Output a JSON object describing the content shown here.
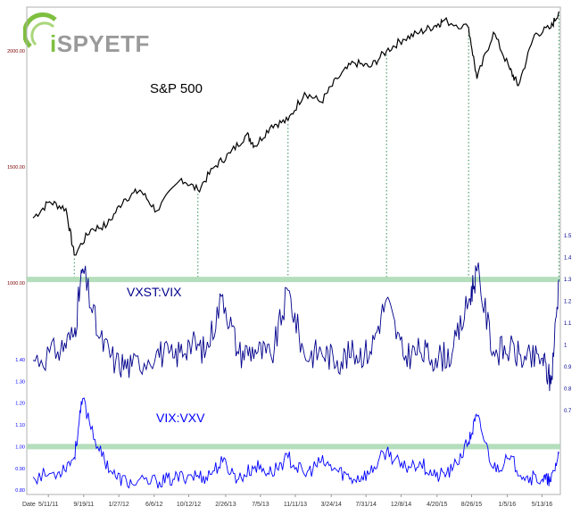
{
  "logo": {
    "prefix": "i",
    "name": "SPYETF",
    "accent": "#7fbf3f"
  },
  "chart_data": [
    {
      "type": "line",
      "title": "S&P 500",
      "xlabel": "Date",
      "x_ticks": [
        "5/11/11",
        "9/19/11",
        "1/27/12",
        "6/6/12",
        "10/12/12",
        "2/26/13",
        "7/5/13",
        "11/11/13",
        "3/24/14",
        "7/31/14",
        "12/8/14",
        "4/20/15",
        "8/26/15",
        "1/5/16",
        "5/13/16"
      ],
      "y_ticks": [
        "1000.00",
        "1500.00",
        "2000.00"
      ],
      "ylim": [
        950,
        2150
      ],
      "color": "#000000",
      "series": [
        {
          "x": [
            "3/2011",
            "5/2011",
            "7/2011",
            "8/2011",
            "10/2011",
            "12/2011",
            "2/2012",
            "4/2012",
            "6/2012",
            "9/2012",
            "11/2012",
            "1/2013",
            "3/2013",
            "5/2013",
            "6/2013",
            "8/2013",
            "10/2013",
            "12/2013",
            "2/2014",
            "4/2014",
            "6/2014",
            "8/2014",
            "10/2014",
            "12/2014",
            "2/2015",
            "4/2015",
            "5/2015",
            "8/2015",
            "9/2015",
            "11/2015",
            "1/2016",
            "2/2016",
            "4/2016",
            "6/2016",
            "7/2016"
          ],
          "y": [
            1280,
            1350,
            1320,
            1120,
            1230,
            1250,
            1360,
            1400,
            1310,
            1450,
            1400,
            1500,
            1560,
            1640,
            1590,
            1680,
            1700,
            1820,
            1780,
            1880,
            1950,
            1930,
            2000,
            2050,
            2080,
            2110,
            2130,
            2100,
            1880,
            2080,
            1920,
            1850,
            2070,
            2100,
            2170
          ]
        }
      ]
    },
    {
      "type": "line",
      "title": "VXST:VIX",
      "y_ticks": [
        "0.7",
        "0.8",
        "0.9",
        "1",
        "1.1",
        "1.2",
        "1.3",
        "1.4",
        "1.5"
      ],
      "ylim": [
        0.65,
        1.55
      ],
      "color": "#00008b",
      "threshold": 1.3,
      "series": [
        {
          "x": [
            "3/2011",
            "6/2011",
            "8/2011",
            "9/2011",
            "11/2011",
            "1/2012",
            "3/2012",
            "6/2012",
            "8/2012",
            "10/2012",
            "12/2012",
            "2/2013",
            "4/2013",
            "6/2013",
            "8/2013",
            "10/2013",
            "12/2013",
            "2/2014",
            "4/2014",
            "6/2014",
            "8/2014",
            "10/2014",
            "12/2014",
            "2/2015",
            "4/2015",
            "6/2015",
            "8/2015",
            "9/2015",
            "11/2015",
            "1/2016",
            "3/2016",
            "5/2016",
            "6/2016",
            "7/2016"
          ],
          "y": [
            0.93,
            0.97,
            1.05,
            1.35,
            1.03,
            0.92,
            0.9,
            0.97,
            0.94,
            1.01,
            0.97,
            1.23,
            0.96,
            0.98,
            0.94,
            1.25,
            0.95,
            0.97,
            0.93,
            0.96,
            0.97,
            1.21,
            0.95,
            0.97,
            0.94,
            0.96,
            1.2,
            1.34,
            0.97,
            0.98,
            0.93,
            0.94,
            0.82,
            1.3
          ]
        }
      ]
    },
    {
      "type": "line",
      "title": "VIX:VXV",
      "y_ticks": [
        "0.80",
        "0.90",
        "1.00",
        "1.10",
        "1.20",
        "1.30",
        "1.40"
      ],
      "ylim": [
        0.78,
        1.42
      ],
      "color": "#0000ff",
      "threshold": 1.0,
      "series": [
        {
          "x": [
            "3/2011",
            "6/2011",
            "8/2011",
            "9/2011",
            "11/2011",
            "1/2012",
            "3/2012",
            "6/2012",
            "8/2012",
            "10/2012",
            "12/2012",
            "2/2013",
            "4/2013",
            "6/2013",
            "8/2013",
            "10/2013",
            "12/2013",
            "2/2014",
            "4/2014",
            "6/2014",
            "8/2014",
            "10/2014",
            "12/2014",
            "2/2015",
            "4/2015",
            "6/2015",
            "8/2015",
            "9/2015",
            "11/2015",
            "1/2016",
            "3/2016",
            "5/2016",
            "6/2016",
            "7/2016"
          ],
          "y": [
            0.86,
            0.88,
            0.95,
            1.22,
            0.98,
            0.86,
            0.83,
            0.84,
            0.85,
            0.87,
            0.86,
            0.93,
            0.85,
            0.91,
            0.88,
            0.95,
            0.87,
            0.93,
            0.89,
            0.85,
            0.88,
            0.98,
            0.9,
            0.93,
            0.86,
            0.89,
            1.02,
            1.14,
            0.9,
            0.94,
            0.86,
            0.85,
            0.84,
            0.97
          ]
        }
      ]
    }
  ]
}
